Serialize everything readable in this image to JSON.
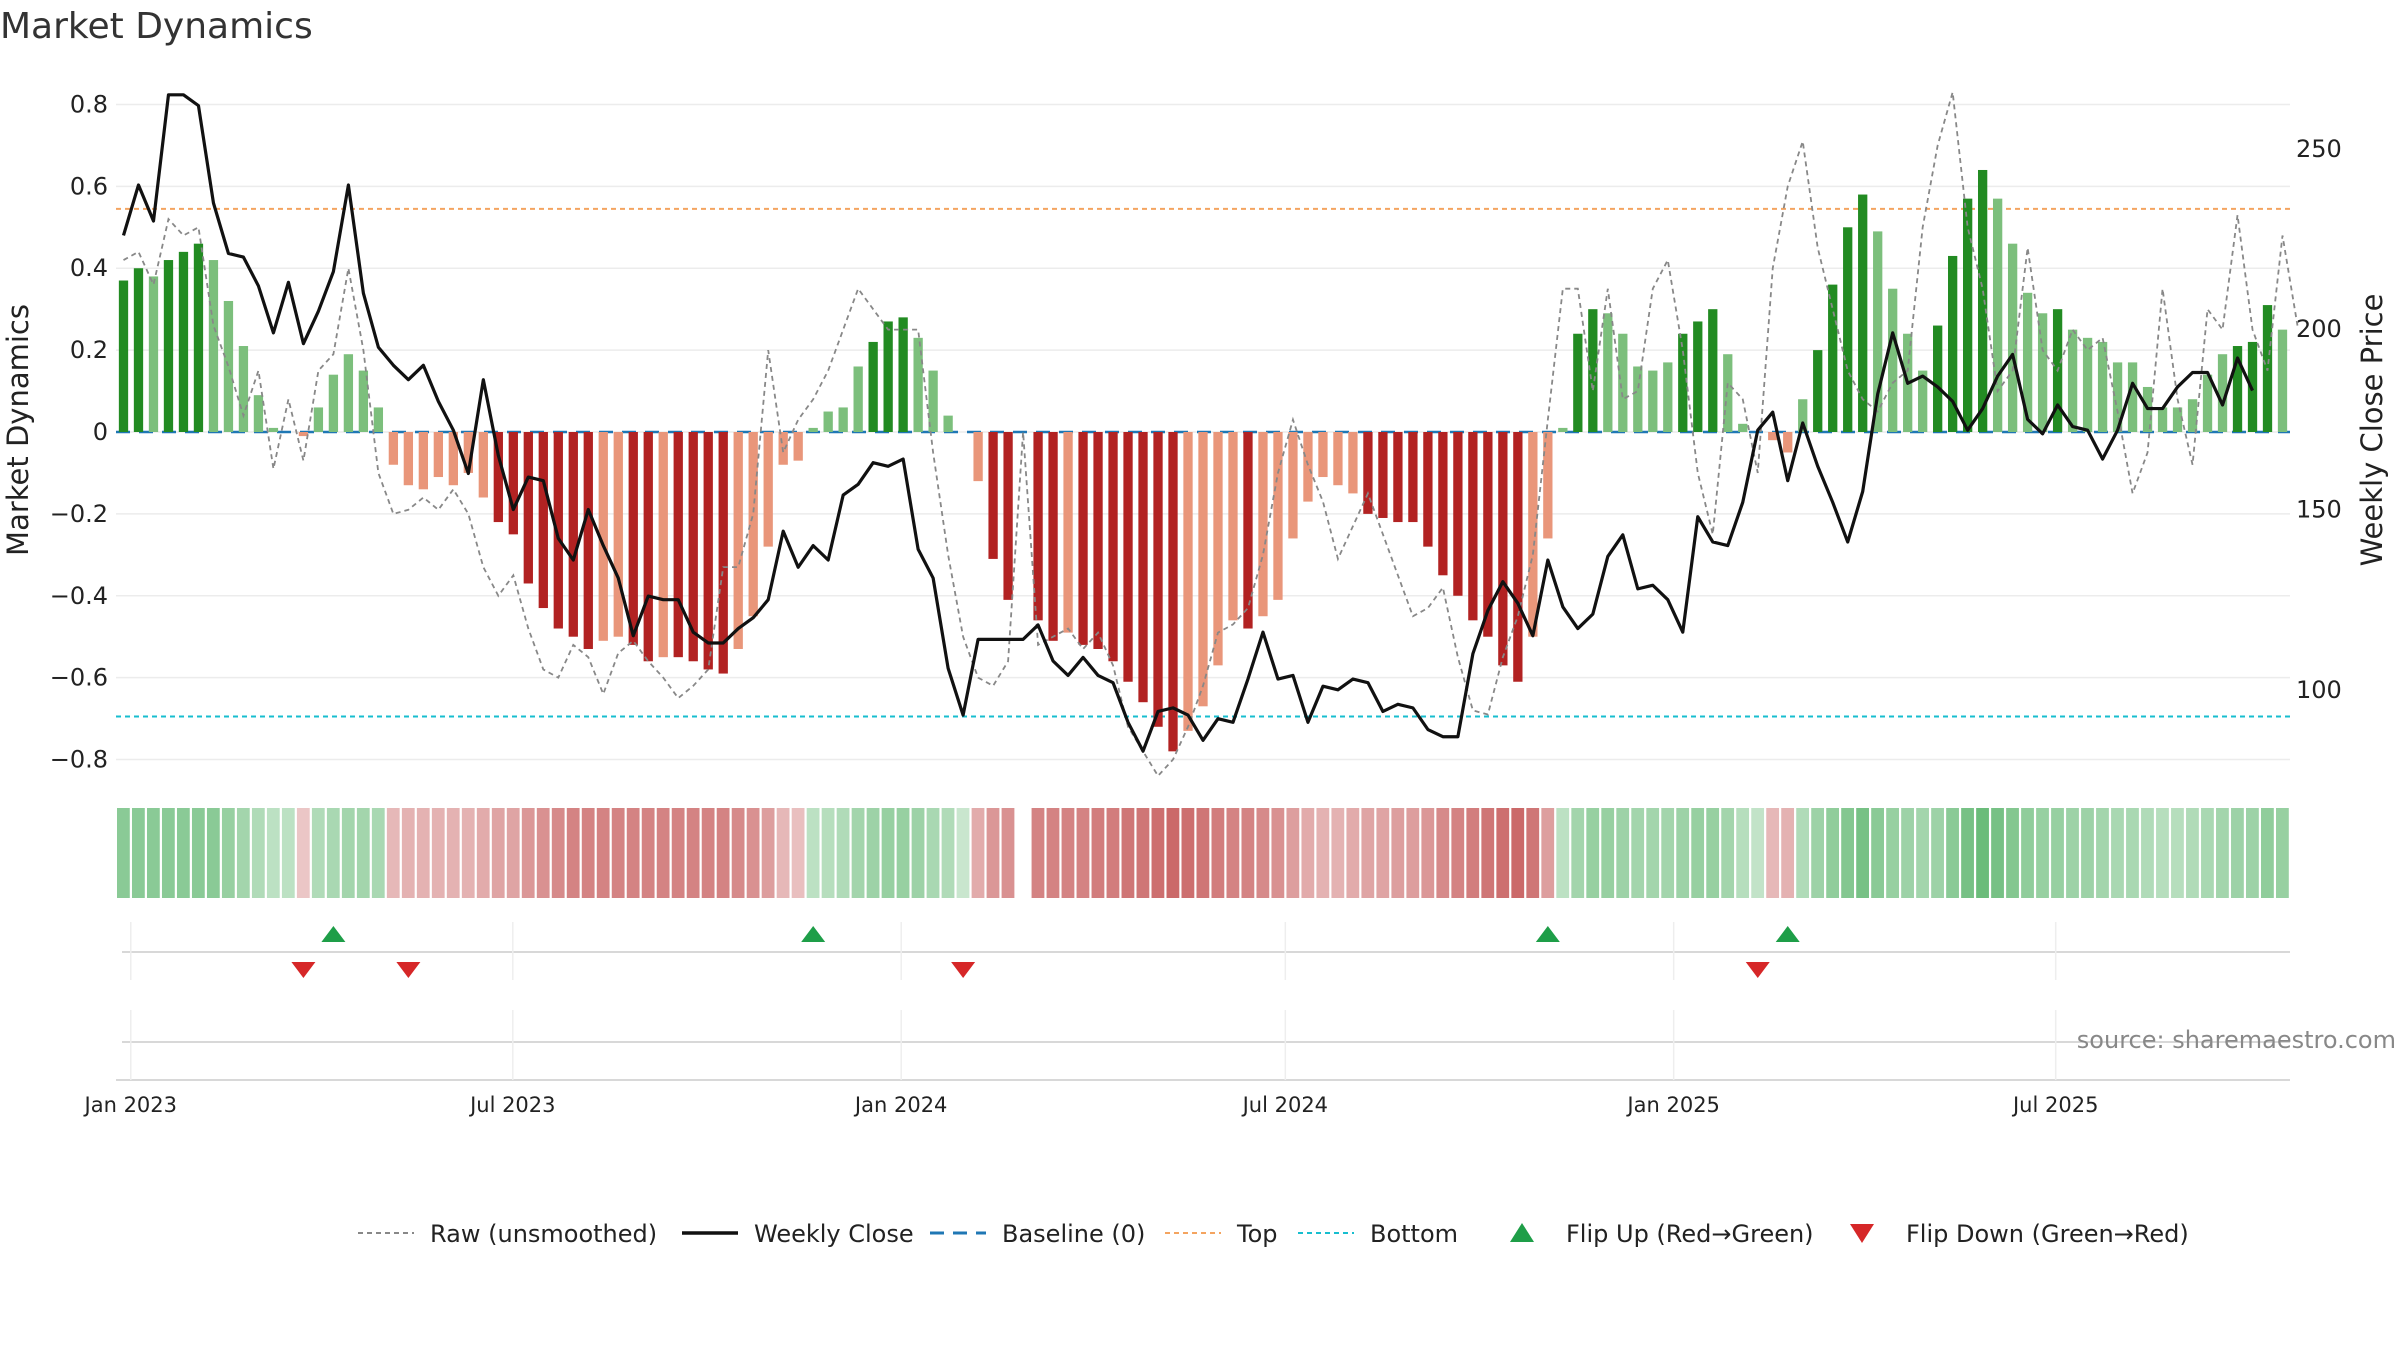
{
  "chart_data": {
    "type": "bar",
    "title": "Market Dynamics",
    "ylabel": "Market Dynamics",
    "y2label": "Weekly Close Price",
    "ylim": [
      -0.85,
      0.85
    ],
    "y2lim": [
      75,
      268
    ],
    "yticks": [
      {
        "value": 0.8,
        "label": "0.8"
      },
      {
        "value": 0.6,
        "label": "0.6"
      },
      {
        "value": 0.4,
        "label": "0.4"
      },
      {
        "value": 0.2,
        "label": "0.2"
      },
      {
        "value": 0,
        "label": "0"
      },
      {
        "value": -0.2,
        "label": "−0.2"
      },
      {
        "value": -0.4,
        "label": "−0.4"
      },
      {
        "value": -0.6,
        "label": "−0.6"
      },
      {
        "value": -0.8,
        "label": "−0.8"
      }
    ],
    "y2ticks": [
      {
        "value": 250,
        "label": "250"
      },
      {
        "value": 200,
        "label": "200"
      },
      {
        "value": 150,
        "label": "150"
      },
      {
        "value": 100,
        "label": "100"
      }
    ],
    "xticks": [
      {
        "value": "2023-01-01",
        "label": "Jan 2023"
      },
      {
        "value": "2023-07-01",
        "label": "Jul 2023"
      },
      {
        "value": "2024-01-01",
        "label": "Jan 2024"
      },
      {
        "value": "2024-07-01",
        "label": "Jul 2024"
      },
      {
        "value": "2025-01-01",
        "label": "Jan 2025"
      },
      {
        "value": "2025-07-01",
        "label": "Jul 2025"
      }
    ],
    "x_start": "2022-12-25",
    "x_end": "2025-10-20",
    "top_level": 0.545,
    "bottom_level": -0.695,
    "grid": true,
    "legend_position": "bottom",
    "colors": {
      "green_strong": "#228b22",
      "green_light": "#7cbf7c",
      "red_strong": "#b22222",
      "red_light": "#e9967a",
      "price_line": "#111111",
      "raw_line": "#888888",
      "baseline": "#1f77b4",
      "top": "#f4a460",
      "bottom": "#17becf",
      "flip_up": "#1e9e48",
      "flip_down": "#d62728"
    },
    "dynamics": [
      0.37,
      0.4,
      0.38,
      0.42,
      0.44,
      0.46,
      0.42,
      0.32,
      0.21,
      0.09,
      0.01,
      0,
      -0.01,
      0.06,
      0.14,
      0.19,
      0.15,
      0.06,
      -0.08,
      -0.13,
      -0.14,
      -0.11,
      -0.13,
      -0.1,
      -0.16,
      -0.22,
      -0.25,
      -0.37,
      -0.43,
      -0.48,
      -0.5,
      -0.53,
      -0.51,
      -0.5,
      -0.52,
      -0.56,
      -0.55,
      -0.55,
      -0.56,
      -0.58,
      -0.59,
      -0.53,
      -0.45,
      -0.28,
      -0.08,
      -0.07,
      0.01,
      0.05,
      0.06,
      0.16,
      0.22,
      0.27,
      0.28,
      0.23,
      0.15,
      0.04,
      0,
      -0.12,
      -0.31,
      -0.41,
      0,
      -0.46,
      -0.51,
      -0.49,
      -0.52,
      -0.53,
      -0.56,
      -0.61,
      -0.66,
      -0.72,
      -0.78,
      -0.73,
      -0.67,
      -0.57,
      -0.46,
      -0.48,
      -0.45,
      -0.41,
      -0.26,
      -0.17,
      -0.11,
      -0.13,
      -0.15,
      -0.2,
      -0.21,
      -0.22,
      -0.22,
      -0.28,
      -0.35,
      -0.4,
      -0.46,
      -0.5,
      -0.57,
      -0.61,
      -0.5,
      -0.26,
      0.01,
      0.24,
      0.3,
      0.29,
      0.24,
      0.16,
      0.15,
      0.17,
      0.24,
      0.27,
      0.3,
      0.19,
      0.02,
      0,
      -0.02,
      -0.05,
      0.08,
      0.2,
      0.36,
      0.5,
      0.58,
      0.49,
      0.35,
      0.24,
      0.15,
      0.26,
      0.43,
      0.57,
      0.64,
      0.57,
      0.46,
      0.34,
      0.29,
      0.3,
      0.25,
      0.23,
      0.22,
      0.17,
      0.17,
      0.11,
      0.06,
      0.06,
      0.08,
      0.14,
      0.19,
      0.21,
      0.22,
      0.31,
      0.25
    ],
    "raw": [
      0.42,
      0.44,
      0.36,
      0.52,
      0.48,
      0.5,
      0.26,
      0.16,
      0.04,
      0.15,
      -0.09,
      0.08,
      -0.07,
      0.15,
      0.19,
      0.4,
      0.2,
      -0.1,
      -0.2,
      -0.19,
      -0.16,
      -0.19,
      -0.14,
      -0.2,
      -0.33,
      -0.4,
      -0.35,
      -0.48,
      -0.58,
      -0.6,
      -0.52,
      -0.55,
      -0.64,
      -0.54,
      -0.51,
      -0.56,
      -0.6,
      -0.65,
      -0.62,
      -0.58,
      -0.33,
      -0.33,
      -0.2,
      0.2,
      -0.05,
      0.03,
      0.08,
      0.15,
      0.25,
      0.35,
      0.3,
      0.25,
      0.25,
      0.25,
      -0.05,
      -0.3,
      -0.5,
      -0.6,
      -0.62,
      -0.56,
      0,
      -0.52,
      -0.5,
      -0.48,
      -0.53,
      -0.49,
      -0.57,
      -0.72,
      -0.78,
      -0.84,
      -0.8,
      -0.72,
      -0.62,
      -0.49,
      -0.47,
      -0.43,
      -0.3,
      -0.1,
      0.03,
      -0.08,
      -0.17,
      -0.31,
      -0.23,
      -0.15,
      -0.25,
      -0.35,
      -0.45,
      -0.43,
      -0.38,
      -0.55,
      -0.68,
      -0.69,
      -0.55,
      -0.45,
      -0.3,
      0.03,
      0.35,
      0.35,
      0.1,
      0.35,
      0.08,
      0.1,
      0.35,
      0.42,
      0.2,
      -0.1,
      -0.25,
      0.12,
      0.08,
      -0.1,
      0.4,
      0.6,
      0.71,
      0.45,
      0.3,
      0.15,
      0.08,
      0.05,
      0.12,
      0.15,
      0.5,
      0.7,
      0.83,
      0.5,
      0.35,
      0.1,
      0.15,
      0.45,
      0.2,
      0.15,
      0.25,
      0.2,
      0.23,
      0.05,
      -0.15,
      -0.05,
      0.35,
      0.08,
      -0.08,
      0.3,
      0.25,
      0.53,
      0.25,
      0.15,
      0.48,
      0.26
    ],
    "price": [
      226,
      240,
      230,
      265,
      265,
      262,
      235,
      221,
      220,
      212,
      199,
      213,
      196,
      205,
      216,
      240,
      210,
      195,
      190,
      186,
      190,
      180,
      172,
      160,
      186,
      165,
      150,
      159,
      158,
      142,
      136,
      150,
      140,
      131,
      115,
      126,
      125,
      125,
      116,
      113,
      113,
      117,
      120,
      125,
      144,
      134,
      140,
      136,
      154,
      157,
      163,
      162,
      164,
      139,
      131,
      106,
      93,
      114,
      114,
      114,
      114,
      118,
      108,
      104,
      109,
      104,
      102,
      91,
      83,
      94,
      95,
      93,
      86,
      92,
      91,
      103,
      116,
      103,
      104,
      91,
      101,
      100,
      103,
      102,
      94,
      96,
      95,
      89,
      87,
      87,
      110,
      122,
      130,
      124,
      115,
      136,
      123,
      117,
      121,
      137,
      143,
      128,
      129,
      125,
      116,
      148,
      141,
      140,
      152,
      172,
      177,
      158,
      174,
      162,
      152,
      141,
      155,
      182,
      199,
      185,
      187,
      184,
      180,
      172,
      178,
      187,
      193,
      175,
      171,
      179,
      173,
      172,
      164,
      172,
      185,
      178,
      178,
      184,
      188,
      188,
      179,
      192,
      183
    ],
    "background_strength": [
      0.6,
      0.6,
      0.6,
      0.6,
      0.6,
      0.6,
      0.6,
      0.5,
      0.4,
      0.3,
      0.2,
      0.2,
      0.1,
      0.3,
      0.35,
      0.4,
      0.4,
      0.35,
      0.2,
      0.25,
      0.25,
      0.25,
      0.25,
      0.25,
      0.3,
      0.35,
      0.35,
      0.45,
      0.5,
      0.55,
      0.6,
      0.6,
      0.6,
      0.6,
      0.6,
      0.6,
      0.6,
      0.6,
      0.6,
      0.6,
      0.6,
      0.55,
      0.5,
      0.4,
      0.2,
      0.15,
      0.2,
      0.25,
      0.3,
      0.4,
      0.45,
      0.5,
      0.5,
      0.45,
      0.35,
      0.3,
      0.1,
      0.3,
      0.45,
      0.5,
      0,
      0.6,
      0.6,
      0.6,
      0.6,
      0.65,
      0.65,
      0.7,
      0.7,
      0.75,
      0.8,
      0.75,
      0.7,
      0.65,
      0.6,
      0.6,
      0.55,
      0.5,
      0.4,
      0.3,
      0.25,
      0.25,
      0.3,
      0.35,
      0.35,
      0.4,
      0.4,
      0.45,
      0.55,
      0.6,
      0.65,
      0.7,
      0.75,
      0.8,
      0.7,
      0.4,
      0.2,
      0.4,
      0.5,
      0.5,
      0.45,
      0.4,
      0.4,
      0.4,
      0.45,
      0.5,
      0.5,
      0.4,
      0.25,
      0.15,
      0.2,
      0.25,
      0.3,
      0.45,
      0.55,
      0.65,
      0.75,
      0.6,
      0.5,
      0.45,
      0.4,
      0.45,
      0.6,
      0.75,
      0.85,
      0.75,
      0.65,
      0.55,
      0.5,
      0.5,
      0.45,
      0.45,
      0.4,
      0.35,
      0.35,
      0.3,
      0.25,
      0.25,
      0.3,
      0.35,
      0.4,
      0.45,
      0.45,
      0.55,
      0.5
    ],
    "flip_up_weeks": [
      14,
      46,
      95,
      111
    ],
    "flip_down_weeks": [
      12,
      19,
      56,
      109
    ],
    "legend": [
      {
        "key": "raw",
        "label": "Raw (unsmoothed)"
      },
      {
        "key": "close",
        "label": "Weekly Close"
      },
      {
        "key": "baseline",
        "label": "Baseline (0)"
      },
      {
        "key": "top",
        "label": "Top"
      },
      {
        "key": "bottom",
        "label": "Bottom"
      },
      {
        "key": "flip_up",
        "label": "Flip Up (Red→Green)"
      },
      {
        "key": "flip_down",
        "label": "Flip Down (Green→Red)"
      }
    ],
    "source": "source: sharemaestro.com"
  }
}
